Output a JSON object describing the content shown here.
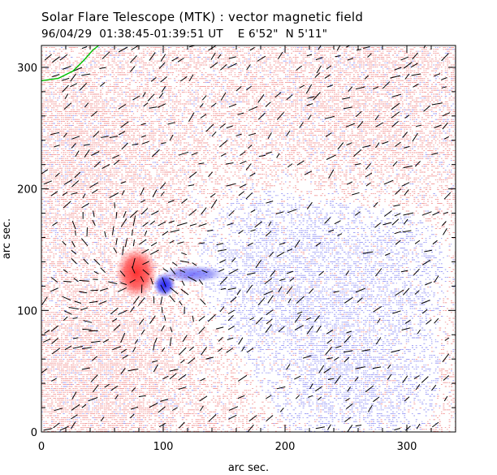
{
  "header": {
    "title": "Solar Flare Telescope (MTK) : vector magnetic field",
    "date": "96/04/29",
    "time_range": "01:38:45-01:39:51 UT",
    "pos_ew": "E 6'52\"",
    "pos_ns": "N 5'11\""
  },
  "colors": {
    "positive_polarity": "#f08080",
    "negative_polarity": "#7070f0",
    "vector": "#000000",
    "limb": "#00c000",
    "background": "#ffffff"
  },
  "chart_data": {
    "type": "heatmap",
    "xlabel": "arc sec.",
    "ylabel": "arc sec.",
    "xlim": [
      0,
      340
    ],
    "ylim": [
      0,
      318
    ],
    "x_ticks": [
      0,
      100,
      200,
      300
    ],
    "y_ticks": [
      0,
      100,
      200,
      300
    ],
    "x_minor_step": 20,
    "y_minor_step": 20,
    "blobs": [
      {
        "name": "positive-sunspot",
        "x": 78,
        "y": 131,
        "polarity": "positive"
      },
      {
        "name": "negative-sunspot",
        "x": 101,
        "y": 121,
        "polarity": "negative"
      },
      {
        "name": "negative-tail",
        "x": 125,
        "y": 130,
        "polarity": "negative"
      },
      {
        "name": "positive-region-sw",
        "x": 40,
        "y": 50,
        "polarity": "positive"
      },
      {
        "name": "positive-region-nw",
        "x": 30,
        "y": 230,
        "polarity": "positive"
      },
      {
        "name": "positive-region-ne",
        "x": 250,
        "y": 260,
        "polarity": "positive"
      },
      {
        "name": "negative-region-se",
        "x": 260,
        "y": 40,
        "polarity": "negative"
      },
      {
        "name": "negative-region-c",
        "x": 200,
        "y": 140,
        "polarity": "negative"
      }
    ],
    "vector_grid_step": 8,
    "limb_arc": [
      [
        0,
        289
      ],
      [
        14,
        291
      ],
      [
        26,
        297
      ],
      [
        35,
        306
      ],
      [
        42,
        314
      ],
      [
        47,
        318
      ]
    ]
  }
}
